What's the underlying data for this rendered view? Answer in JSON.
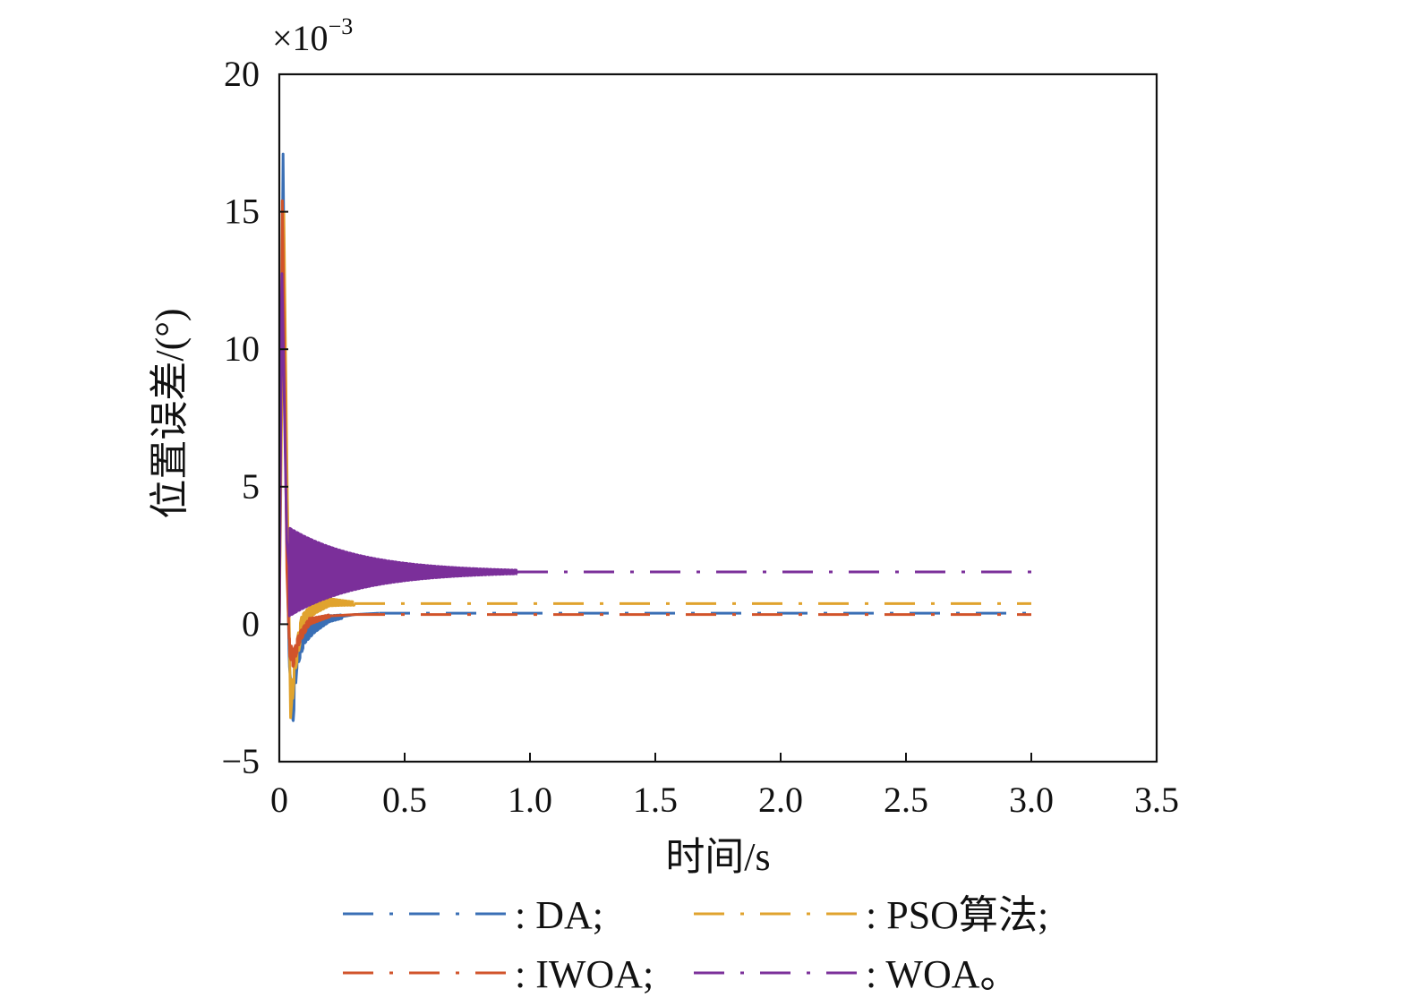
{
  "chart_data": {
    "type": "line",
    "xlabel": "时间/s",
    "ylabel": "位置误差/(°)",
    "y_exponent": {
      "base": "×10",
      "power": "−3"
    },
    "xlim": [
      0,
      3.5
    ],
    "ylim": [
      -5,
      20
    ],
    "x_ticks": [
      0,
      0.5,
      1.0,
      1.5,
      2.0,
      2.5,
      3.0,
      3.5
    ],
    "x_tick_labels": [
      "0",
      "0.5",
      "1.0",
      "1.5",
      "2.0",
      "2.5",
      "3.0",
      "3.5"
    ],
    "y_ticks": [
      -5,
      0,
      5,
      10,
      15,
      20
    ],
    "y_tick_labels": [
      "−5",
      "0",
      "5",
      "10",
      "15",
      "20"
    ],
    "grid": false,
    "legend_placement": "bottom",
    "x_end": 3.0,
    "series": [
      {
        "name": ": DA;",
        "color": "#3a6fb5",
        "transient": [
          [
            0.0,
            0.0
          ],
          [
            0.015,
            17.1
          ],
          [
            0.022,
            10.0
          ],
          [
            0.03,
            3.0
          ],
          [
            0.04,
            -1.5
          ],
          [
            0.055,
            -3.1
          ],
          [
            0.07,
            -1.2
          ],
          [
            0.1,
            -0.4
          ],
          [
            0.14,
            -0.1
          ],
          [
            0.2,
            0.2
          ],
          [
            0.3,
            0.35
          ],
          [
            0.4,
            0.4
          ]
        ],
        "steady": 0.4,
        "osc": {
          "start": 0.05,
          "end": 0.25,
          "amp": 0.5,
          "decay": 10,
          "period": 0.012
        }
      },
      {
        "name": ": PSO算法;",
        "color": "#e0a32e",
        "transient": [
          [
            0.0,
            0.0
          ],
          [
            0.018,
            15.0
          ],
          [
            0.03,
            6.0
          ],
          [
            0.045,
            -3.4
          ],
          [
            0.06,
            -1.5
          ],
          [
            0.09,
            0.0
          ],
          [
            0.14,
            0.6
          ],
          [
            0.2,
            0.8
          ],
          [
            0.3,
            0.75
          ]
        ],
        "steady": 0.75,
        "osc": {
          "start": 0.05,
          "end": 0.3,
          "amp": 0.45,
          "decay": 8,
          "period": 0.012
        }
      },
      {
        "name": ": IWOA;",
        "color": "#d1532a",
        "transient": [
          [
            0.0,
            0.0
          ],
          [
            0.012,
            15.4
          ],
          [
            0.02,
            10.0
          ],
          [
            0.03,
            2.0
          ],
          [
            0.04,
            -0.8
          ],
          [
            0.055,
            -1.3
          ],
          [
            0.08,
            -0.5
          ],
          [
            0.12,
            0.1
          ],
          [
            0.2,
            0.3
          ],
          [
            0.3,
            0.35
          ]
        ],
        "steady": 0.35,
        "osc": {
          "start": 0.04,
          "end": 0.2,
          "amp": 0.3,
          "decay": 12,
          "period": 0.012
        }
      },
      {
        "name": ": WOA。",
        "color": "#7b2f9a",
        "transient": [
          [
            0.0,
            0.0
          ],
          [
            0.01,
            13.0
          ],
          [
            0.02,
            8.0
          ],
          [
            0.03,
            3.0
          ],
          [
            0.04,
            2.0
          ]
        ],
        "steady": 1.9,
        "osc": {
          "start": 0.04,
          "end": 0.95,
          "amp": 1.6,
          "decay": 3.5,
          "period": 0.014
        }
      }
    ]
  }
}
